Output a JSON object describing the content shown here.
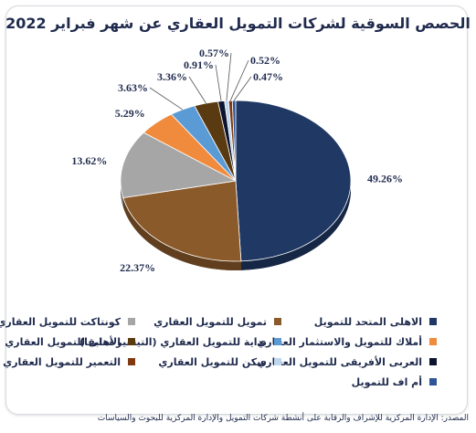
{
  "source": "المصدر: الإدارة المركزية للإشراف والرقابة على أنشطة شركات التمويل والإدارة المركزية للبحوث والسياسات",
  "chart_data": {
    "type": "pie",
    "title": "الحصص السوقية لشركات التمويل العقاري عن شهر فبراير 2022",
    "legend_position": "bottom",
    "slices": [
      {
        "name": "الاهلى المتحد للتمويل",
        "value": 49.26,
        "label": "49.26%",
        "color": "#1f3864"
      },
      {
        "name": "تمويل للتمويل العقاري",
        "value": 22.37,
        "label": "22.37%",
        "color": "#8b5a2b"
      },
      {
        "name": "كونتاكت للتمويل العقاري",
        "value": 13.62,
        "label": "13.62%",
        "color": "#a6a6a6"
      },
      {
        "name": "أملاك للتمويل والاستثمار العقاري",
        "value": 5.29,
        "label": "5.29%",
        "color": "#f08a3c"
      },
      {
        "name": "بداية للتمويل العقاري (التيسير سابقا)",
        "value": 3.63,
        "label": "3.63%",
        "color": "#5b9bd5"
      },
      {
        "name": "الأهلى للتمويل العقاري",
        "value": 3.36,
        "label": "3.36%",
        "color": "#5a3a10"
      },
      {
        "name": "العربى الأفريقى للتمويل العقاري",
        "value": 0.91,
        "label": "0.91%",
        "color": "#0c1430"
      },
      {
        "name": "سكن للتمويل العقاري",
        "value": 0.57,
        "label": "0.57%",
        "color": "#bdd7ee"
      },
      {
        "name": "التعمير للتمويل العقاري",
        "value": 0.52,
        "label": "0.52%",
        "color": "#7f3a12"
      },
      {
        "name": "أم اف للتمويل",
        "value": 0.47,
        "label": "0.47%",
        "color": "#2e5597"
      }
    ]
  }
}
